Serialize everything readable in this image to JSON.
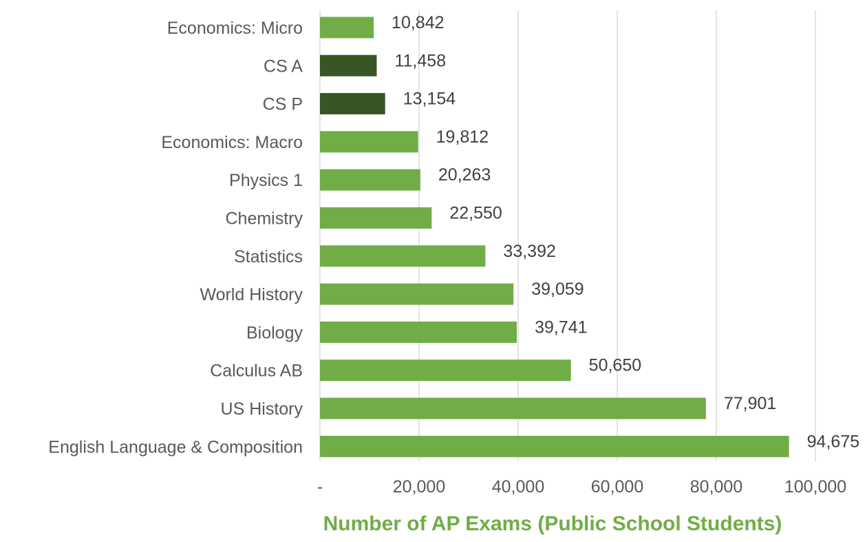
{
  "chart_data": {
    "type": "bar",
    "orientation": "horizontal",
    "title": "",
    "xlabel": "Number of AP Exams (Public School Students)",
    "ylabel": "",
    "categories": [
      "Economics: Micro",
      "CS A",
      "CS P",
      "Economics: Macro",
      "Physics 1",
      "Chemistry",
      "Statistics",
      "World History",
      "Biology",
      "Calculus AB",
      "US History",
      "English Language & Composition"
    ],
    "values": [
      10842,
      11458,
      13154,
      19812,
      20263,
      22550,
      33392,
      39059,
      39741,
      50650,
      77901,
      94675
    ],
    "value_labels": [
      "10,842",
      "11,458",
      "13,154",
      "19,812",
      "20,263",
      "22,550",
      "33,392",
      "39,059",
      "39,741",
      "50,650",
      "77,901",
      "94,675"
    ],
    "highlighted": [
      "CS A",
      "CS P"
    ],
    "xlim": [
      0,
      100000
    ],
    "xticks": [
      0,
      20000,
      40000,
      60000,
      80000,
      100000
    ],
    "xtick_labels": [
      "-",
      "20,000",
      "40,000",
      "60,000",
      "80,000",
      "100,000"
    ],
    "grid": "vertical",
    "legend": "none",
    "colors": {
      "bar": "#70AD47",
      "highlight": "#375623",
      "axis_title": "#70AD47",
      "gridline": "#D9D9D9"
    }
  }
}
